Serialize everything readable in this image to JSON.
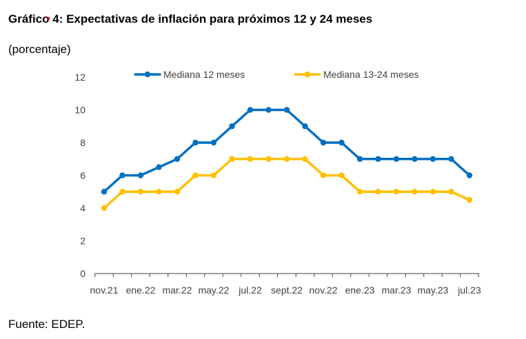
{
  "title": "Gráfico 4: Expectativas de inflación para próximos 12 y 24 meses",
  "subtitle": "(porcentaje)",
  "source": "Fuente: EDEP.",
  "colors": {
    "series_12": "#0070C0",
    "series_24": "#FFC000",
    "axis": "#404040",
    "title_mark": "#C00000"
  },
  "chart_data": {
    "type": "line",
    "title": "Gráfico 4: Expectativas de inflación para próximos 12 y 24 meses",
    "ylabel": "(porcentaje)",
    "xlabel": "",
    "ylim": [
      0,
      12
    ],
    "yticks": [
      0,
      2,
      4,
      6,
      8,
      10,
      12
    ],
    "grid": false,
    "legend_position": "top",
    "x_tick_labels": [
      "nov.21",
      "ene.22",
      "mar.22",
      "may.22",
      "jul.22",
      "sept.22",
      "nov.22",
      "ene.23",
      "mar.23",
      "may.23",
      "jul.23"
    ],
    "x_tick_every": 2,
    "point_count": 21,
    "series": [
      {
        "name": "Mediana 12 meses",
        "color": "#0070C0",
        "values": [
          5,
          6,
          6,
          6.5,
          7,
          8,
          8,
          9,
          10,
          10,
          10,
          9,
          8,
          8,
          7,
          7,
          7,
          7,
          7,
          7,
          6
        ]
      },
      {
        "name": "Mediana 13-24 meses",
        "color": "#FFC000",
        "values": [
          4,
          5,
          5,
          5,
          5,
          6,
          6,
          7,
          7,
          7,
          7,
          7,
          6,
          6,
          5,
          5,
          5,
          5,
          5,
          5,
          4.5
        ]
      }
    ]
  }
}
